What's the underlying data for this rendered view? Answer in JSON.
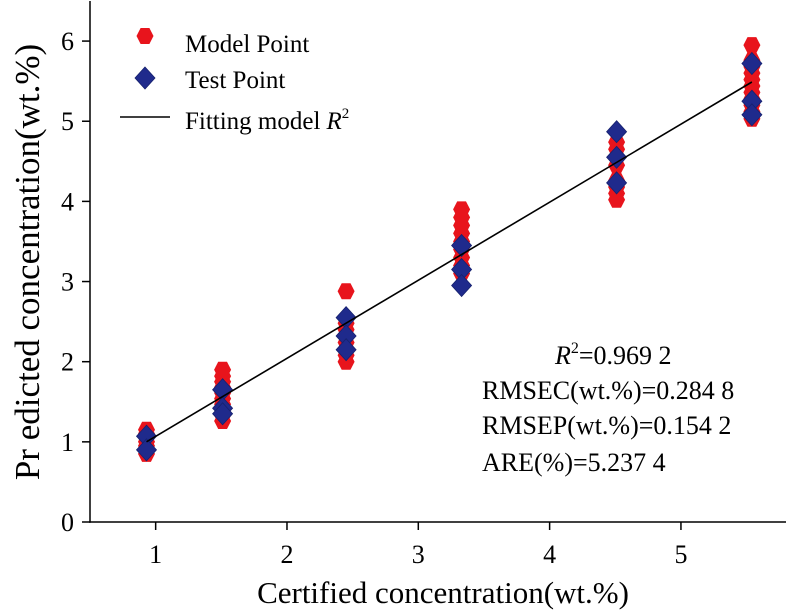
{
  "chart_data": {
    "type": "scatter",
    "xlabel": "Certified concentration(wt.%)",
    "ylabel": "Pr edicted concentration(wt.%)",
    "xlim": [
      0.5,
      5.8
    ],
    "ylim": [
      0,
      6.5
    ],
    "xticks": [
      1,
      2,
      3,
      4,
      5
    ],
    "yticks": [
      0,
      1,
      2,
      3,
      4,
      5,
      6
    ],
    "grid": false,
    "legend_position": "top-left",
    "series": [
      {
        "name": "Model Point",
        "marker": "hexagon",
        "color": "#e8141c",
        "points": [
          [
            0.93,
            0.85
          ],
          [
            0.93,
            0.9
          ],
          [
            0.93,
            0.95
          ],
          [
            0.93,
            1.0
          ],
          [
            0.93,
            1.05
          ],
          [
            0.93,
            1.1
          ],
          [
            0.93,
            1.15
          ],
          [
            1.51,
            1.26
          ],
          [
            1.51,
            1.33
          ],
          [
            1.51,
            1.4
          ],
          [
            1.51,
            1.47
          ],
          [
            1.51,
            1.54
          ],
          [
            1.51,
            1.61
          ],
          [
            1.51,
            1.68
          ],
          [
            1.51,
            1.75
          ],
          [
            1.51,
            1.82
          ],
          [
            1.51,
            1.9
          ],
          [
            2.45,
            2.0
          ],
          [
            2.45,
            2.08
          ],
          [
            2.45,
            2.16
          ],
          [
            2.45,
            2.24
          ],
          [
            2.45,
            2.32
          ],
          [
            2.45,
            2.4
          ],
          [
            2.45,
            2.48
          ],
          [
            2.45,
            2.88
          ],
          [
            3.33,
            3.1
          ],
          [
            3.33,
            3.2
          ],
          [
            3.33,
            3.3
          ],
          [
            3.33,
            3.4
          ],
          [
            3.33,
            3.5
          ],
          [
            3.33,
            3.6
          ],
          [
            3.33,
            3.7
          ],
          [
            3.33,
            3.8
          ],
          [
            3.33,
            3.9
          ],
          [
            4.51,
            4.02
          ],
          [
            4.51,
            4.1
          ],
          [
            4.51,
            4.18
          ],
          [
            4.51,
            4.26
          ],
          [
            4.51,
            4.45
          ],
          [
            4.51,
            4.55
          ],
          [
            4.51,
            4.65
          ],
          [
            4.51,
            4.74
          ],
          [
            5.54,
            5.03
          ],
          [
            5.54,
            5.12
          ],
          [
            5.54,
            5.2
          ],
          [
            5.54,
            5.28
          ],
          [
            5.54,
            5.36
          ],
          [
            5.54,
            5.44
          ],
          [
            5.54,
            5.52
          ],
          [
            5.54,
            5.6
          ],
          [
            5.54,
            5.68
          ],
          [
            5.54,
            5.76
          ],
          [
            5.54,
            5.95
          ]
        ]
      },
      {
        "name": "Test Point",
        "marker": "diamond",
        "color": "#1f2a8c",
        "points": [
          [
            0.93,
            1.07
          ],
          [
            0.93,
            0.9
          ],
          [
            1.51,
            1.65
          ],
          [
            1.51,
            1.42
          ],
          [
            1.51,
            1.35
          ],
          [
            2.45,
            2.55
          ],
          [
            2.45,
            2.32
          ],
          [
            2.45,
            2.15
          ],
          [
            3.33,
            3.45
          ],
          [
            3.33,
            3.15
          ],
          [
            3.33,
            2.95
          ],
          [
            4.51,
            4.87
          ],
          [
            4.51,
            4.55
          ],
          [
            4.51,
            4.23
          ],
          [
            5.54,
            5.72
          ],
          [
            5.54,
            5.25
          ],
          [
            5.54,
            5.08
          ]
        ]
      },
      {
        "name": "Fitting model",
        "name_italic": "R",
        "name_sup": "2",
        "marker": "line",
        "color": "#000000",
        "points": [
          [
            0.93,
            1.0
          ],
          [
            5.54,
            5.49
          ]
        ]
      }
    ],
    "annotations": [
      {
        "italic": "R",
        "sup": "2",
        "text": "=0.969 2"
      },
      {
        "text": "RMSEC(wt.%)=0.284 8"
      },
      {
        "text": "RMSEP(wt.%)=0.154 2"
      },
      {
        "text": "ARE(%)=5.237 4"
      }
    ]
  }
}
